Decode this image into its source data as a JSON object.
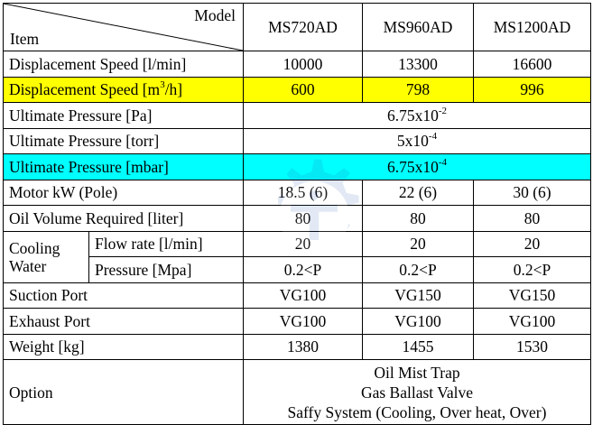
{
  "header": {
    "model_label": "Model",
    "item_label": "Item",
    "models": [
      "MS720AD",
      "MS960AD",
      "MS1200AD"
    ]
  },
  "rows": {
    "disp_lmin": {
      "label": "Displacement Speed [l/min]",
      "values": [
        "10000",
        "13300",
        "16600"
      ]
    },
    "disp_m3h": {
      "label_prefix": "Displacement Speed [m",
      "label_sup": "3",
      "label_suffix": "/h]",
      "values": [
        "600",
        "798",
        "996"
      ],
      "highlight": "#ffff00"
    },
    "ult_pa": {
      "label": "Ultimate Pressure [Pa]",
      "base": "6.75x10",
      "exp": "-2"
    },
    "ult_torr": {
      "label": "Ultimate Pressure [torr]",
      "base": "5x10",
      "exp": "-4"
    },
    "ult_mbar": {
      "label": "Ultimate Pressure [mbar]",
      "base": "6.75x10",
      "exp": "-4",
      "highlight": "#00ffff"
    },
    "motor": {
      "label": "Motor kW (Pole)",
      "values": [
        "18.5 (6)",
        "22 (6)",
        "30 (6)"
      ]
    },
    "oil": {
      "label": "Oil Volume Required [liter]",
      "values": [
        "80",
        "80",
        "80"
      ]
    },
    "cooling": {
      "group_label_line1": "Cooling",
      "group_label_line2": "Water",
      "flow": {
        "label": "Flow rate [l/min]",
        "values": [
          "20",
          "20",
          "20"
        ]
      },
      "pressure": {
        "label": "Pressure [Mpa]",
        "values": [
          "0.2<P",
          "0.2<P",
          "0.2<P"
        ]
      }
    },
    "suction": {
      "label": "Suction Port",
      "values": [
        "VG100",
        "VG150",
        "VG150"
      ]
    },
    "exhaust": {
      "label": "Exhaust Port",
      "values": [
        "VG100",
        "VG100",
        "VG100"
      ]
    },
    "weight": {
      "label": "Weight [kg]",
      "values": [
        "1380",
        "1455",
        "1530"
      ]
    },
    "option": {
      "label": "Option",
      "lines": [
        "Oil Mist Trap",
        "Gas Ballast Valve",
        "Saffy System (Cooling, Over heat, Over)"
      ]
    }
  },
  "watermark_icon": "gear-logo"
}
